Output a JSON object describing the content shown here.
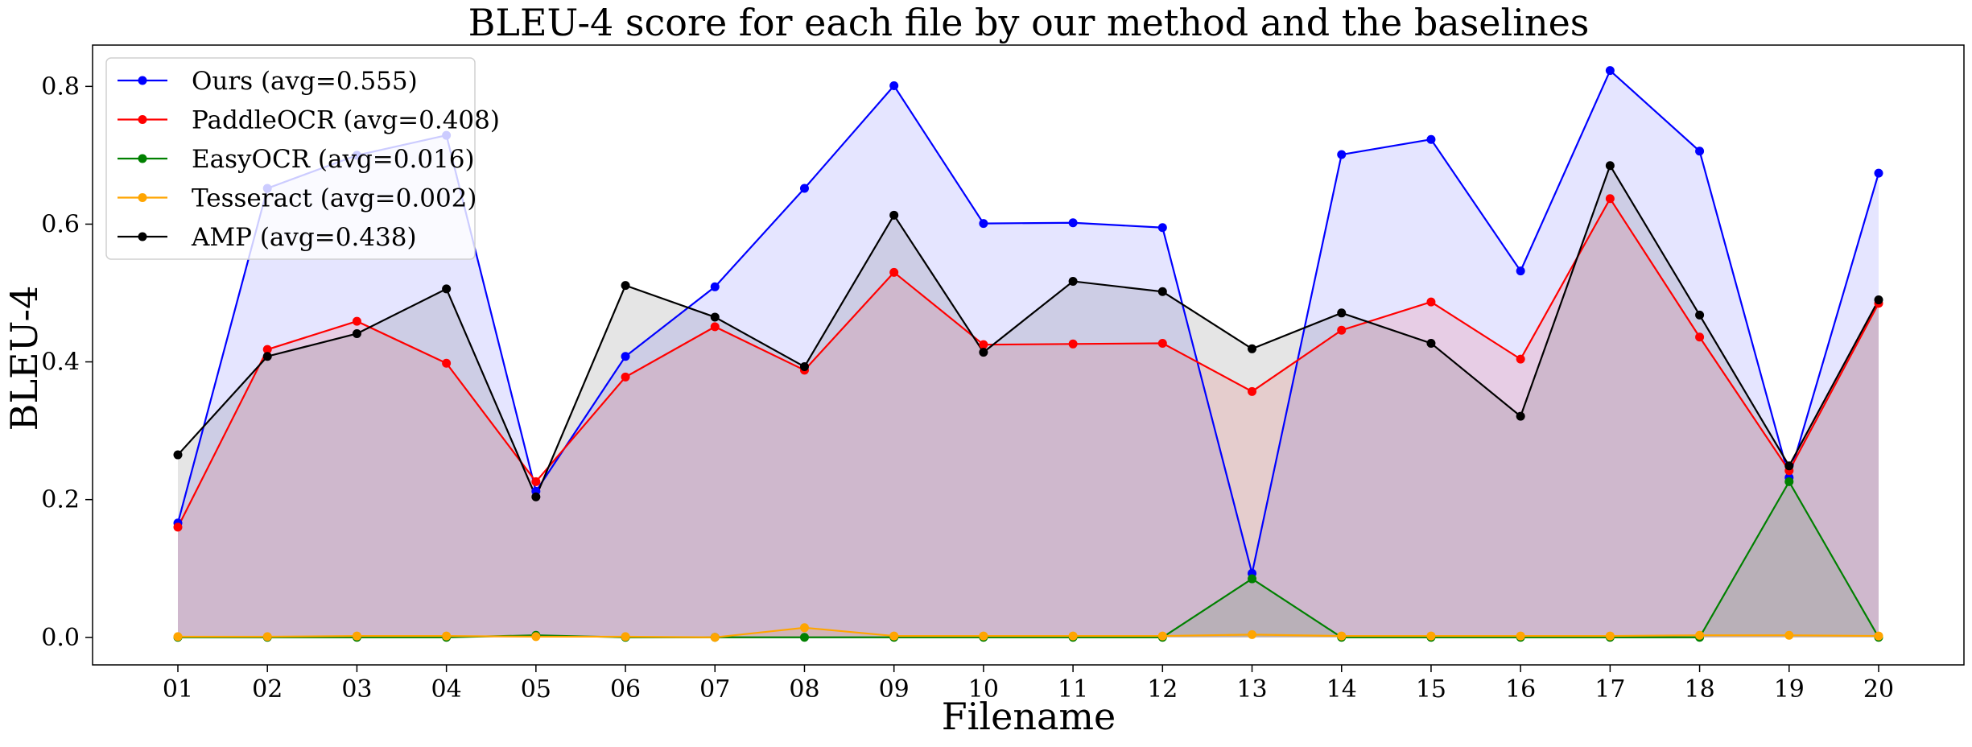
{
  "chart_data": {
    "type": "line",
    "title": "BLEU-4 score for each file by our method and the baselines",
    "xlabel": "Filename",
    "ylabel": "BLEU-4",
    "categories": [
      "01",
      "02",
      "03",
      "04",
      "05",
      "06",
      "07",
      "08",
      "09",
      "10",
      "11",
      "12",
      "13",
      "14",
      "15",
      "16",
      "17",
      "18",
      "19",
      "20"
    ],
    "ylim": [
      -0.04,
      0.86
    ],
    "yticks": [
      0.0,
      0.2,
      0.4,
      0.6,
      0.8
    ],
    "ytick_labels": [
      "0.0",
      "0.2",
      "0.4",
      "0.6",
      "0.8"
    ],
    "grid": false,
    "legend_position": "top-left",
    "fill_under_lines": true,
    "series": [
      {
        "name": "Ours (avg=0.555)",
        "color": "#0000ff",
        "values": [
          0.166,
          0.652,
          0.7,
          0.729,
          0.212,
          0.408,
          0.509,
          0.652,
          0.801,
          0.601,
          0.602,
          0.595,
          0.093,
          0.701,
          0.723,
          0.532,
          0.823,
          0.706,
          0.232,
          0.674
        ]
      },
      {
        "name": "PaddleOCR (avg=0.408)",
        "color": "#ff0000",
        "values": [
          0.16,
          0.418,
          0.459,
          0.398,
          0.226,
          0.378,
          0.451,
          0.388,
          0.53,
          0.425,
          0.426,
          0.427,
          0.357,
          0.446,
          0.487,
          0.404,
          0.637,
          0.436,
          0.242,
          0.485
        ]
      },
      {
        "name": "EasyOCR (avg=0.016)",
        "color": "#008000",
        "values": [
          0.0,
          0.0,
          0.0,
          0.0,
          0.003,
          0.0,
          0.0,
          0.0,
          0.0,
          0.0,
          0.0,
          0.0,
          0.085,
          0.0,
          0.0,
          0.0,
          0.0,
          0.0,
          0.226,
          0.0
        ]
      },
      {
        "name": "Tesseract (avg=0.002)",
        "color": "#ffa500",
        "values": [
          0.001,
          0.001,
          0.002,
          0.002,
          0.001,
          0.001,
          0.0,
          0.014,
          0.002,
          0.002,
          0.002,
          0.002,
          0.004,
          0.002,
          0.002,
          0.002,
          0.002,
          0.003,
          0.003,
          0.002
        ]
      },
      {
        "name": "AMP (avg=0.438)",
        "color": "#000000",
        "values": [
          0.265,
          0.408,
          0.441,
          0.506,
          0.204,
          0.511,
          0.465,
          0.393,
          0.613,
          0.414,
          0.517,
          0.502,
          0.419,
          0.471,
          0.427,
          0.321,
          0.685,
          0.468,
          0.249,
          0.49
        ]
      }
    ]
  }
}
